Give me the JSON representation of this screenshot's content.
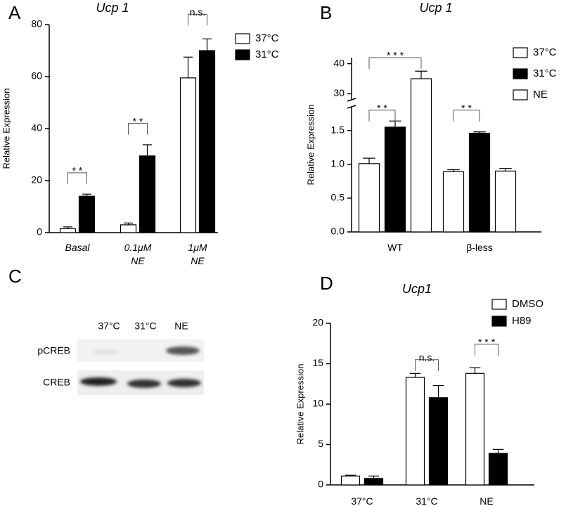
{
  "chart_data": [
    {
      "panel": "A",
      "type": "bar",
      "title": "Ucp 1",
      "y_label": "Relative Expression",
      "categories": [
        "Basal",
        "0.1μM\nNE",
        "1μM\nNE"
      ],
      "series": [
        {
          "name": "37°C",
          "color": "#ffffff",
          "values": [
            1.5,
            3,
            59.5
          ],
          "errors": [
            0.7,
            0.7,
            8
          ]
        },
        {
          "name": "31°C",
          "color": "#000000",
          "values": [
            14,
            29.5,
            70
          ],
          "errors": [
            0.8,
            4.3,
            4.5
          ]
        }
      ],
      "ylim": [
        0,
        80
      ],
      "yticks": [
        0,
        20,
        40,
        60,
        80
      ],
      "annotations": [
        {
          "text": "* *",
          "category": 0,
          "between": [
            "37°C",
            "31°C"
          ],
          "y": 23
        },
        {
          "text": "* *",
          "category": 1,
          "between": [
            "37°C",
            "31°C"
          ],
          "y": 42
        },
        {
          "text": "n.s.",
          "category": 2,
          "between": [
            "37°C",
            "31°C"
          ],
          "y": 84
        }
      ],
      "legend": "upper right"
    },
    {
      "panel": "B",
      "type": "bar",
      "title": "Ucp 1",
      "y_label": "Relative Expression",
      "categories": [
        "WT",
        "β-less"
      ],
      "series": [
        {
          "name": "37°C",
          "color": "#ffffff",
          "values": [
            1.01,
            0.89
          ],
          "errors": [
            0.08,
            0.03
          ]
        },
        {
          "name": "31°C",
          "color": "#000000",
          "values": [
            1.55,
            1.46
          ],
          "errors": [
            0.09,
            0.02
          ]
        },
        {
          "name": "NE",
          "color": "#ffffff",
          "values": [
            35,
            0.9
          ],
          "errors": [
            2.5,
            0.04
          ]
        }
      ],
      "ylim": [
        0,
        42
      ],
      "ybreak": [
        1.85,
        28
      ],
      "yticks": [
        {
          "value": 0,
          "label": "0.0"
        },
        {
          "value": 0.5,
          "label": "0.5"
        },
        {
          "value": 1,
          "label": "1.0"
        },
        {
          "value": 1.5,
          "label": "1.5"
        },
        30,
        40
      ],
      "annotations": [
        {
          "text": "* *",
          "category": 0,
          "between": [
            "37°C",
            "31°C"
          ],
          "y": 1.8
        },
        {
          "text": "* * *",
          "category": 0,
          "between": [
            "37°C",
            "NE"
          ],
          "y": 42
        },
        {
          "text": "* *",
          "category": 1,
          "between": [
            "37°C",
            "31°C"
          ],
          "y": 1.8
        }
      ],
      "legend": "upper right"
    },
    {
      "panel": "D",
      "type": "bar",
      "title": "Ucp1",
      "y_label": "Relative Expression",
      "categories": [
        "37°C",
        "31°C",
        "NE"
      ],
      "series": [
        {
          "name": "DMSO",
          "color": "#ffffff",
          "values": [
            1.1,
            13.3,
            13.8
          ],
          "errors": [
            0.1,
            0.5,
            0.7
          ]
        },
        {
          "name": "H89",
          "color": "#000000",
          "values": [
            0.8,
            10.8,
            3.9
          ],
          "errors": [
            0.3,
            1.5,
            0.5
          ]
        }
      ],
      "ylim": [
        0,
        20
      ],
      "yticks": [
        0,
        5,
        10,
        15,
        20
      ],
      "annotations": [
        {
          "text": "n.s.",
          "category": 1,
          "between": [
            "DMSO",
            "H89"
          ],
          "y": 15.5
        },
        {
          "text": "* * *",
          "category": 2,
          "between": [
            "DMSO",
            "H89"
          ],
          "y": 17.4
        }
      ],
      "legend": "upper right"
    }
  ],
  "blot": {
    "panel": "C",
    "lanes": [
      "37°C",
      "31°C",
      "NE"
    ],
    "rows": [
      "pCREB",
      "CREB"
    ]
  }
}
